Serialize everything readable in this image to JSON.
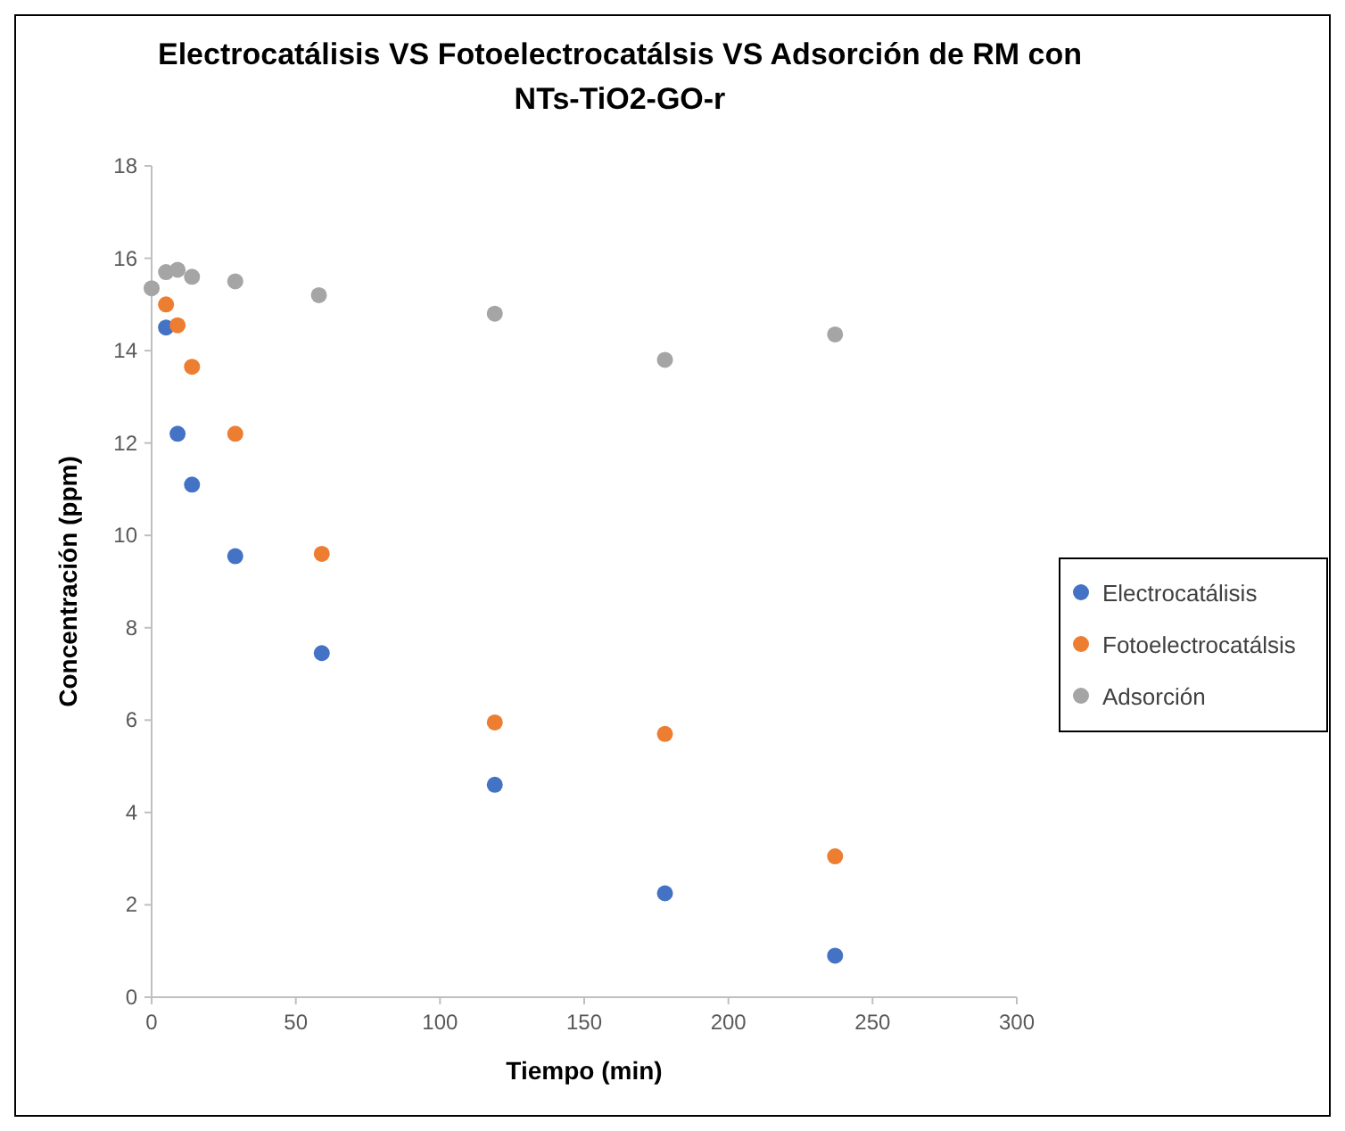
{
  "chart_data": {
    "type": "scatter",
    "title": "Electrocatálisis VS Fotoelectrocatálsis VS Adsorción de RM con NTs-TiO2-GO-r",
    "xlabel": "Tiempo (min)",
    "ylabel": "Concentración (ppm)",
    "xlim": [
      0,
      300
    ],
    "xticks": [
      0,
      50,
      100,
      150,
      200,
      250,
      300
    ],
    "ylim": [
      0,
      18
    ],
    "yticks": [
      0,
      2,
      4,
      6,
      8,
      10,
      12,
      14,
      16,
      18
    ],
    "grid": false,
    "legend": "right",
    "marker": "circle",
    "series": [
      {
        "name": "Electrocatálisis",
        "color": "#4472c4",
        "x": [
          5,
          9,
          14,
          29,
          59,
          119,
          178,
          237
        ],
        "values": [
          14.5,
          12.2,
          11.1,
          9.55,
          7.45,
          4.6,
          2.25,
          0.9
        ]
      },
      {
        "name": "Fotoelectrocatálsis",
        "color": "#ed7d31",
        "x": [
          5,
          9,
          14,
          29,
          59,
          119,
          178,
          237
        ],
        "values": [
          15.0,
          14.55,
          13.65,
          12.2,
          9.6,
          5.95,
          5.7,
          3.05
        ]
      },
      {
        "name": "Adsorción",
        "color": "#a5a5a5",
        "x": [
          0,
          5,
          9,
          14,
          29,
          58,
          119,
          178,
          237
        ],
        "values": [
          15.35,
          15.7,
          15.75,
          15.6,
          15.5,
          15.2,
          14.8,
          13.8,
          14.35
        ]
      }
    ]
  }
}
